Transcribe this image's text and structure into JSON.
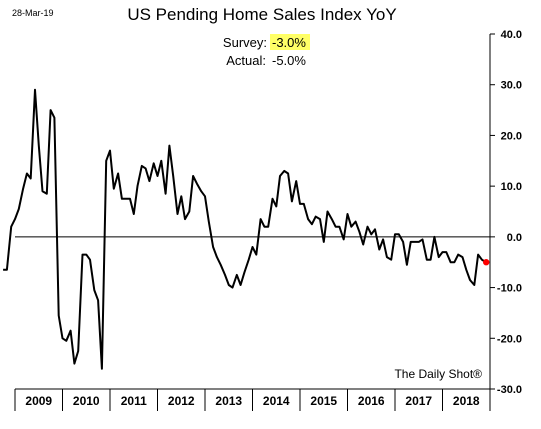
{
  "date_stamp": "28-Mar-19",
  "source": "The Daily Shot®",
  "annotations": {
    "survey_label": "Survey:",
    "survey_value": "-3.0%",
    "actual_label": "Actual:",
    "actual_value": "-5.0%",
    "highlight_color": "#ffff66"
  },
  "chart_data": {
    "type": "line",
    "title": "US Pending Home Sales Index YoY",
    "xlabel": "",
    "ylabel": "",
    "ylim": [
      -30,
      40
    ],
    "yticks": [
      40,
      30,
      20,
      10,
      0,
      -10,
      -20,
      -30
    ],
    "ytick_labels": [
      "40.0",
      "30.0",
      "20.0",
      "10.0",
      "0.0",
      "-10.0",
      "-20.0",
      "-30.0"
    ],
    "y_axis_position": "right",
    "x_range": [
      2009.0,
      2019.0
    ],
    "xtick_labels": [
      "2009",
      "2010",
      "2011",
      "2012",
      "2013",
      "2014",
      "2015",
      "2016",
      "2017",
      "2018"
    ],
    "grid": false,
    "zero_line": true,
    "line_color": "#000000",
    "last_point_color": "#ff0000",
    "series": [
      {
        "x": [
          2008.75,
          2008.83,
          2008.92,
          2009.0,
          2009.08,
          2009.17,
          2009.25,
          2009.33,
          2009.42,
          2009.5,
          2009.58,
          2009.67,
          2009.75,
          2009.83,
          2009.92,
          2010.0,
          2010.08,
          2010.17,
          2010.25,
          2010.33,
          2010.42,
          2010.5,
          2010.58,
          2010.67,
          2010.75,
          2010.83,
          2010.92,
          2011.0,
          2011.08,
          2011.17,
          2011.25,
          2011.33,
          2011.42,
          2011.5,
          2011.58,
          2011.67,
          2011.75,
          2011.83,
          2011.92,
          2012.0,
          2012.08,
          2012.17,
          2012.25,
          2012.33,
          2012.42,
          2012.5,
          2012.58,
          2012.67,
          2012.75,
          2012.83,
          2012.92,
          2013.0,
          2013.08,
          2013.17,
          2013.25,
          2013.33,
          2013.42,
          2013.5,
          2013.58,
          2013.67,
          2013.75,
          2013.83,
          2013.92,
          2014.0,
          2014.08,
          2014.17,
          2014.25,
          2014.33,
          2014.42,
          2014.5,
          2014.58,
          2014.67,
          2014.75,
          2014.83,
          2014.92,
          2015.0,
          2015.08,
          2015.17,
          2015.25,
          2015.33,
          2015.42,
          2015.5,
          2015.58,
          2015.67,
          2015.75,
          2015.83,
          2015.92,
          2016.0,
          2016.08,
          2016.17,
          2016.25,
          2016.33,
          2016.42,
          2016.5,
          2016.58,
          2016.67,
          2016.75,
          2016.83,
          2016.92,
          2017.0,
          2017.08,
          2017.17,
          2017.25,
          2017.33,
          2017.42,
          2017.5,
          2017.58,
          2017.67,
          2017.75,
          2017.83,
          2017.92,
          2018.0,
          2018.08,
          2018.17,
          2018.25,
          2018.33,
          2018.42,
          2018.5,
          2018.58,
          2018.67,
          2018.75,
          2018.83,
          2018.92
        ],
        "values": [
          -6.5,
          -6.5,
          2.0,
          3.5,
          5.5,
          9.5,
          12.5,
          11.5,
          29.0,
          18.0,
          9.0,
          8.5,
          25.0,
          23.5,
          -15.5,
          -20.0,
          -20.5,
          -18.5,
          -25.0,
          -22.5,
          -3.5,
          -3.5,
          -4.5,
          -10.5,
          -12.5,
          -26.0,
          15.0,
          17.0,
          9.5,
          12.5,
          7.5,
          7.5,
          7.5,
          4.5,
          10.0,
          14.0,
          13.5,
          11.0,
          14.5,
          12.0,
          15.0,
          8.5,
          18.0,
          12.0,
          4.5,
          8.0,
          3.5,
          5.0,
          12.0,
          10.5,
          9.0,
          8.0,
          3.0,
          -2.0,
          -4.0,
          -5.5,
          -7.5,
          -9.5,
          -10.0,
          -7.5,
          -9.5,
          -7.0,
          -4.5,
          -2.0,
          -3.5,
          3.5,
          2.0,
          2.0,
          7.5,
          6.0,
          12.0,
          13.0,
          12.5,
          7.0,
          11.0,
          6.5,
          6.5,
          3.5,
          2.5,
          4.0,
          3.5,
          -1.0,
          5.0,
          3.5,
          2.0,
          2.0,
          -0.5,
          4.5,
          2.0,
          3.0,
          1.0,
          -1.5,
          2.0,
          0.5,
          1.5,
          -2.5,
          -0.5,
          -4.0,
          -4.5,
          0.5,
          0.5,
          -1.0,
          -5.5,
          -1.0,
          -1.0,
          -1.0,
          -0.5,
          -4.5,
          -4.5,
          0.0,
          -4.0,
          -3.0,
          -3.0,
          -5.0,
          -5.0,
          -3.5,
          -4.0,
          -6.5,
          -8.5,
          -9.5,
          -3.5,
          -4.5,
          -5.0
        ]
      }
    ]
  }
}
